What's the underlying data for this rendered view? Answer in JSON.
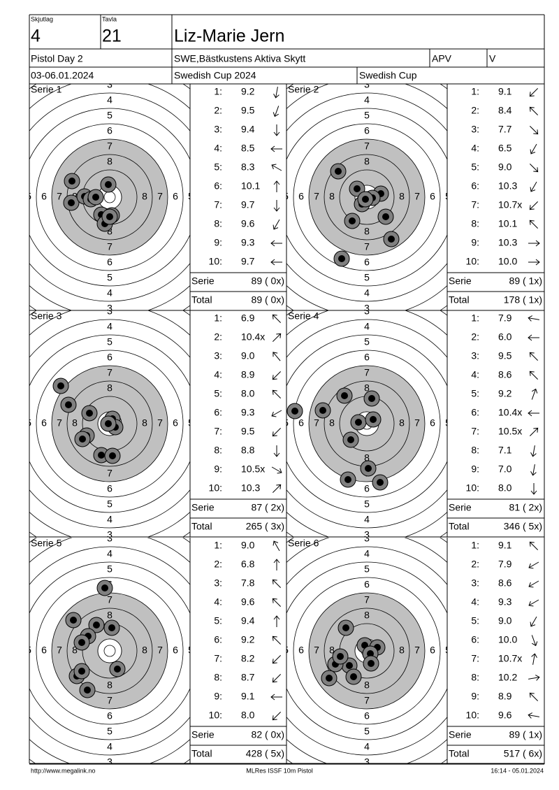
{
  "header": {
    "squad_label": "Skjutlag",
    "squad": "4",
    "target_label": "Tavla",
    "target": "21",
    "name": "Liz-Marie Jern",
    "event": "Pistol Day 2",
    "club": "SWE,Bästkustens Aktiva Skytt",
    "class": "APV",
    "class2": "V",
    "date": "03-06.01.2024",
    "competition": "Swedish Cup 2024",
    "competition2": "Swedish Cup"
  },
  "ring_labels": [
    "3",
    "4",
    "5",
    "6",
    "7",
    "8"
  ],
  "shot_numbers": [
    "1:",
    "2:",
    "3:",
    "4:",
    "5:",
    "6:",
    "7:",
    "8:",
    "9:",
    "10:"
  ],
  "serie_label": "Serie",
  "total_label": "Total",
  "series": [
    {
      "title": "Serie 1",
      "shots": [
        "9.2",
        "9.5",
        "9.4",
        "8.5",
        "8.3",
        "10.1",
        "9.7",
        "9.6",
        "9.3",
        "9.7"
      ],
      "serie_score": "89 ( 0x)",
      "total_score": "89 ( 0x)"
    },
    {
      "title": "Serie 2",
      "shots": [
        "9.1",
        "8.4",
        "7.7",
        "6.5",
        "9.0",
        "10.3",
        "10.7x",
        "10.1",
        "10.3",
        "10.0"
      ],
      "serie_score": "89 ( 1x)",
      "total_score": "178 ( 1x)"
    },
    {
      "title": "Serie 3",
      "shots": [
        "6.9",
        "10.4x",
        "9.0",
        "8.9",
        "8.0",
        "9.3",
        "9.5",
        "8.8",
        "10.5x",
        "10.3"
      ],
      "serie_score": "87 ( 2x)",
      "total_score": "265 ( 3x)"
    },
    {
      "title": "Serie 4",
      "shots": [
        "7.9",
        "6.0",
        "9.5",
        "8.6",
        "9.2",
        "10.4x",
        "10.5x",
        "7.1",
        "7.0",
        "8.0"
      ],
      "serie_score": "81 ( 2x)",
      "total_score": "346 ( 5x)"
    },
    {
      "title": "Serie 5",
      "shots": [
        "9.0",
        "6.8",
        "7.8",
        "9.6",
        "9.4",
        "9.2",
        "8.2",
        "8.7",
        "9.1",
        "8.0"
      ],
      "serie_score": "82 ( 0x)",
      "total_score": "428 ( 5x)"
    },
    {
      "title": "Serie 6",
      "shots": [
        "9.1",
        "7.9",
        "8.6",
        "9.3",
        "9.0",
        "10.0",
        "10.7x",
        "10.2",
        "8.9",
        "9.6"
      ],
      "serie_score": "89 ( 1x)",
      "total_score": "517 ( 6x)"
    }
  ],
  "footer": {
    "left": "http://www.megalink.no",
    "center": "MLRes ISSF 10m Pistol",
    "right": "16:14 - 05.01.2024"
  }
}
